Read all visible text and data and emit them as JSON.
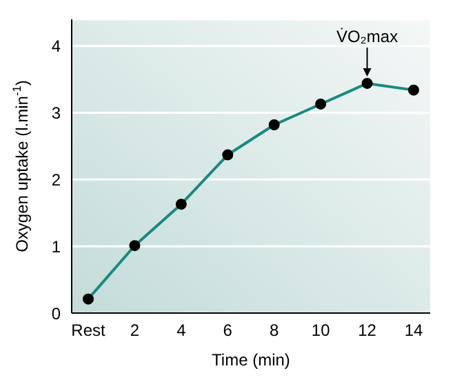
{
  "chart_data": {
    "type": "line",
    "categories": [
      "Rest",
      "2",
      "4",
      "6",
      "8",
      "10",
      "12",
      "14"
    ],
    "series": [
      {
        "color": "#178a80",
        "values": [
          0.21,
          1.01,
          1.63,
          2.37,
          2.82,
          3.13,
          3.44,
          3.34
        ]
      }
    ],
    "xlabel": "Time (min)",
    "ylabel": "Oxygen uptake (l.min$^{-1}$)",
    "ylim": [
      0,
      4.4
    ],
    "yticks": [
      0,
      1,
      2,
      3,
      4
    ],
    "annotations": [
      {
        "text": "V̇O₂max",
        "x": "12",
        "y": 3.44
      }
    ],
    "grid": "y",
    "marker": "circle"
  }
}
